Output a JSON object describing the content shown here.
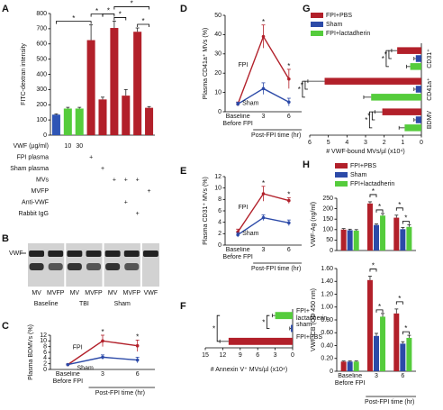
{
  "chart_data": [
    {
      "panel": "A",
      "type": "bar",
      "ylabel": "FITC-dextran intensity",
      "values": [
        135,
        175,
        175,
        625,
        235,
        705,
        260,
        680,
        180
      ],
      "errors": [
        5,
        8,
        8,
        100,
        15,
        45,
        40,
        25,
        8
      ],
      "colors": [
        "#2f55b5",
        "#55cc3c",
        "#55cc3c",
        "#b2202a",
        "#b2202a",
        "#b2202a",
        "#b2202a",
        "#b2202a",
        "#b2202a"
      ],
      "ylim": [
        0,
        800
      ],
      "yticks": [
        0,
        100,
        200,
        300,
        400,
        500,
        600,
        700,
        800
      ],
      "table": {
        "rows": [
          {
            "label": "VWF (µg/ml)",
            "cells": [
              null,
              "10",
              "30",
              null,
              null,
              null,
              null,
              null,
              null
            ]
          },
          {
            "label": "FPI plasma",
            "cells": [
              null,
              null,
              null,
              "+",
              null,
              null,
              null,
              null,
              null
            ]
          },
          {
            "label": "Sham plasma",
            "cells": [
              null,
              null,
              null,
              null,
              "+",
              null,
              null,
              null,
              null
            ]
          },
          {
            "label": "MVs",
            "cells": [
              null,
              null,
              null,
              null,
              null,
              "+",
              "+",
              "+",
              null
            ]
          },
          {
            "label": "MVFP",
            "cells": [
              null,
              null,
              null,
              null,
              null,
              null,
              null,
              null,
              "+"
            ]
          },
          {
            "label": "Anti-VWF",
            "cells": [
              null,
              null,
              null,
              null,
              null,
              null,
              "+",
              null,
              null
            ]
          },
          {
            "label": "Rabbit IgG",
            "cells": [
              null,
              null,
              null,
              null,
              null,
              null,
              null,
              "+",
              null
            ]
          }
        ]
      },
      "annotations": [
        "*",
        "*",
        "*",
        "*",
        "*",
        "*"
      ]
    },
    {
      "panel": "C",
      "type": "line",
      "ylabel": "Plasma BDMVs (%)",
      "xlabel": "Post-FPI time (hr)",
      "categories": [
        "Baseline\nBefore FPI",
        "3",
        "6"
      ],
      "series": [
        {
          "name": "FPI",
          "color": "#b2202a",
          "values": [
            1.7,
            10,
            8.3
          ],
          "errors": [
            0.2,
            2,
            2
          ]
        },
        {
          "name": "Sham",
          "color": "#2c4aa8",
          "values": [
            1.7,
            4.3,
            3.3
          ],
          "errors": [
            0.2,
            0.8,
            1
          ]
        }
      ],
      "ylim": [
        0,
        12
      ],
      "yticks": [
        0,
        2,
        4,
        6,
        8,
        10,
        12
      ],
      "annotations": [
        "*",
        "*"
      ]
    },
    {
      "panel": "D",
      "type": "line",
      "ylabel": "Plasma CD41a⁺ MVs (%)",
      "xlabel": "Post-FPI time (hr)",
      "categories": [
        "Baseline\nBefore FPI",
        "3",
        "6"
      ],
      "series": [
        {
          "name": "FPI",
          "color": "#b2202a",
          "values": [
            4,
            39,
            17
          ],
          "errors": [
            1,
            6,
            5
          ]
        },
        {
          "name": "Sham",
          "color": "#2c4aa8",
          "values": [
            4,
            12,
            5
          ],
          "errors": [
            1,
            3,
            2
          ]
        }
      ],
      "ylim": [
        0,
        50
      ],
      "yticks": [
        0,
        10,
        20,
        30,
        40,
        50
      ],
      "annotations": [
        "*",
        "*"
      ]
    },
    {
      "panel": "E",
      "type": "line",
      "ylabel": "Plasma CD31⁺ MVs (%)",
      "xlabel": "Post-FPI time (hr)",
      "categories": [
        "Baseline\nBefore FPI",
        "3",
        "6"
      ],
      "series": [
        {
          "name": "FPI",
          "color": "#b2202a",
          "values": [
            2.3,
            9,
            7.8
          ],
          "errors": [
            0.5,
            1.3,
            0.5
          ]
        },
        {
          "name": "Sham",
          "color": "#2c4aa8",
          "values": [
            1.8,
            4.8,
            3.9
          ],
          "errors": [
            0.4,
            0.5,
            0.5
          ]
        }
      ],
      "ylim": [
        0,
        12
      ],
      "yticks": [
        0,
        2,
        4,
        6,
        8,
        10,
        12
      ],
      "annotations": [
        "*",
        "*"
      ]
    },
    {
      "panel": "F",
      "type": "barh",
      "xlabel": "# Annexin V⁺ MVs/µl (x10⁴)",
      "categories": [
        "FPI+\nlactadherin",
        "sham",
        "FPI+PBS"
      ],
      "values": [
        3,
        0.3,
        11
      ],
      "errors": [
        0.5,
        0.2,
        1.5
      ],
      "colors": [
        "#55cc3c",
        "#2c4aa8",
        "#b2202a"
      ],
      "xlim": [
        15,
        0
      ],
      "xticks": [
        15,
        12,
        9,
        6,
        3,
        0
      ],
      "annotations": [
        "*",
        "*"
      ]
    },
    {
      "panel": "G",
      "type": "barh",
      "xlabel": "# VWF-bound MVs/µl (x10⁴)",
      "categories": [
        "CD31⁺",
        "CD41a⁺",
        "BDMV"
      ],
      "series": [
        {
          "name": "FPI+PBS",
          "color": "#b2202a",
          "values": [
            1.3,
            5.2,
            2.1
          ],
          "errors": [
            0.3,
            0.9,
            0.4
          ]
        },
        {
          "name": "Sham",
          "color": "#2c4aa8",
          "values": [
            0.3,
            0.3,
            0.3
          ],
          "errors": [
            0.1,
            0.1,
            0.1
          ]
        },
        {
          "name": "FPI+lactadherin",
          "color": "#55cc3c",
          "values": [
            0.6,
            2.7,
            0.9
          ],
          "errors": [
            0.2,
            0.4,
            0.3
          ]
        }
      ],
      "xlim": [
        6,
        0
      ],
      "xticks": [
        6,
        5,
        4,
        3,
        2,
        1,
        0
      ],
      "legend": true,
      "annotations": [
        "*",
        "*",
        "*",
        "*",
        "*",
        "*"
      ]
    },
    {
      "panel": "H",
      "type": "bar",
      "ylabel": "VWF-Ag (ng/ml)",
      "series": [
        {
          "name": "FPI+PBS",
          "color": "#b2202a",
          "values": [
            100,
            225,
            157
          ],
          "errors": [
            5,
            8,
            12
          ]
        },
        {
          "name": "Sham",
          "color": "#2c4aa8",
          "values": [
            97,
            122,
            102
          ],
          "errors": [
            5,
            5,
            8
          ]
        },
        {
          "name": "FPI+lactadherin",
          "color": "#55cc3c",
          "values": [
            95,
            167,
            113
          ],
          "errors": [
            5,
            10,
            10
          ]
        }
      ],
      "ylim": [
        0,
        250
      ],
      "yticks": [
        0,
        50,
        100,
        150,
        200,
        250
      ],
      "legend": true,
      "annotations": [
        "*",
        "*",
        "*",
        "*"
      ]
    },
    {
      "type": "bar",
      "ylabel": "VWF-CB (OD 450 nm)",
      "xlabel": "Post-FPI time (hr)",
      "categories": [
        "Baseline\nBefore FPI",
        "3",
        "6"
      ],
      "series": [
        {
          "name": "FPI+PBS",
          "color": "#b2202a",
          "values": [
            0.15,
            1.42,
            0.9
          ],
          "errors": [
            0.01,
            0.06,
            0.07
          ]
        },
        {
          "name": "Sham",
          "color": "#2c4aa8",
          "values": [
            0.15,
            0.55,
            0.43
          ],
          "errors": [
            0.01,
            0.04,
            0.03
          ]
        },
        {
          "name": "FPI+lactadherin",
          "color": "#55cc3c",
          "values": [
            0.15,
            0.85,
            0.52
          ],
          "errors": [
            0.01,
            0.05,
            0.04
          ]
        }
      ],
      "ylim": [
        0,
        1.6
      ],
      "yticks": [
        0,
        {
          "value": 0.2,
          "label": "0.20"
        },
        {
          "value": 0.4,
          "label": "0.40"
        },
        {
          "value": 0.6,
          "label": "0.60"
        },
        {
          "value": 0.8,
          "label": "0.80"
        },
        {
          "value": 1,
          "label": "1.00"
        },
        {
          "value": 1.2,
          "label": "1.20"
        },
        {
          "value": 1.4,
          "label": "1.40"
        },
        {
          "value": 1.6,
          "label": "1.60"
        }
      ],
      "annotations": [
        "*",
        "*",
        "*",
        "*"
      ]
    }
  ],
  "blot": {
    "panel": "B",
    "protein": "VWF",
    "lanes": [
      "MV",
      "MVFP",
      "MV",
      "MVFP",
      "MV",
      "MVFP",
      "VWF"
    ],
    "groups": [
      "Baseline",
      "TBI",
      "Sham"
    ]
  }
}
